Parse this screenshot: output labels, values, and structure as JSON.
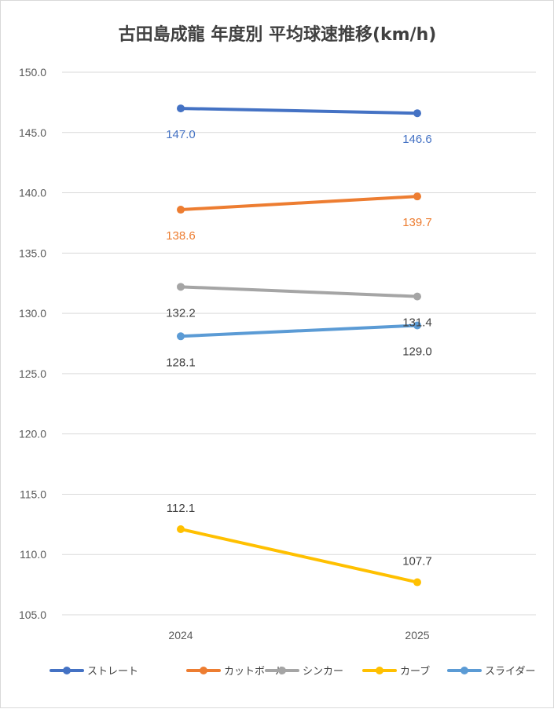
{
  "chart_data": {
    "type": "line",
    "title": "古田島成龍 年度別 平均球速推移(km/h)",
    "categories": [
      "2024",
      "2025"
    ],
    "ylim": [
      105,
      150
    ],
    "yticks": [
      "150.0",
      "145.0",
      "140.0",
      "135.0",
      "130.0",
      "125.0",
      "120.0",
      "115.0",
      "110.0",
      "105.0"
    ],
    "ytick_values": [
      150,
      145,
      140,
      135,
      130,
      125,
      120,
      115,
      110,
      105
    ],
    "grid": true,
    "legend_position": "bottom",
    "series": [
      {
        "name": "ストレート",
        "values": [
          147.0,
          146.6
        ],
        "labels": [
          "147.0",
          "146.6"
        ],
        "color": "#4472c4",
        "label_color": "#4472c4",
        "label_pos": "below"
      },
      {
        "name": "カットボール",
        "values": [
          138.6,
          139.7
        ],
        "labels": [
          "138.6",
          "139.7"
        ],
        "color": "#ed7d31",
        "label_color": "#ed7d31",
        "label_pos": "below"
      },
      {
        "name": "シンカー",
        "values": [
          132.2,
          131.4
        ],
        "labels": [
          "132.2",
          "131.4"
        ],
        "color": "#a5a5a5",
        "label_color": "#404040",
        "label_pos": "below"
      },
      {
        "name": "カーブ",
        "values": [
          112.1,
          107.7
        ],
        "labels": [
          "112.1",
          "107.7"
        ],
        "color": "#ffc000",
        "label_color": "#404040",
        "label_pos": "above"
      },
      {
        "name": "スライダー",
        "values": [
          128.1,
          129.0
        ],
        "labels": [
          "128.1",
          "129.0"
        ],
        "color": "#5b9bd5",
        "label_color": "#404040",
        "label_pos": "below"
      }
    ]
  }
}
